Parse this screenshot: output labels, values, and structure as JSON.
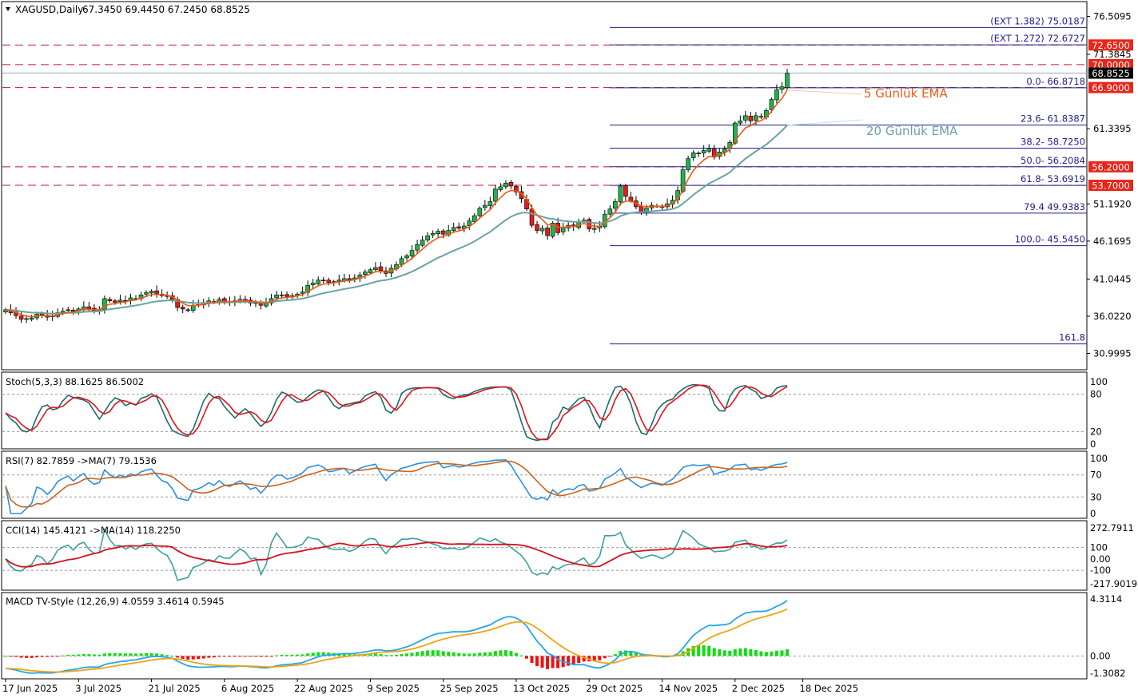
{
  "header": {
    "title": "XAGUSD,Daily",
    "ohlc": "67.3450 69.4450 67.2450 68.8525"
  },
  "colors": {
    "up_candle": "#22b24c",
    "down_candle": "#e21b1b",
    "ema5": "#f05a14",
    "ema20": "#6aa3a3",
    "level_line": "#1f1f8c",
    "resistance_dash": "#c8102e",
    "price_label_bg": "#e8261a",
    "stoch_main": "#1d6b6b",
    "stoch_signal": "#e0141c",
    "rsi_main": "#2b8fe0",
    "rsi_ma": "#c8641e",
    "cci_main": "#3aa0a0",
    "cci_ma": "#d4101e",
    "macd_line": "#22a8e6",
    "macd_signal": "#f5a211",
    "hist_pos": "#11dd11",
    "hist_neg": "#ee1111"
  },
  "chart_data": [
    {
      "type": "candlestick",
      "symbol": "XAGUSD",
      "timeframe": "Daily",
      "ylim": [
        28.9,
        78.4
      ],
      "y_ticks": [
        "76.5095",
        "71.3845",
        "61.3395",
        "51.1920",
        "46.1695",
        "41.0445",
        "36.0220",
        "30.9995"
      ],
      "x_ticks": [
        "17 Jun 2025",
        "3 Jul 2025",
        "21 Jul 2025",
        "6 Aug 2025",
        "22 Aug 2025",
        "9 Sep 2025",
        "25 Sep 2025",
        "13 Oct 2025",
        "29 Oct 2025",
        "14 Nov 2025",
        "2 Dec 2025",
        "18 Dec 2025"
      ],
      "closes": [
        36.9,
        36.5,
        36.1,
        35.6,
        35.7,
        35.8,
        36.3,
        36.2,
        35.9,
        36.1,
        36.5,
        36.7,
        36.9,
        36.7,
        37.0,
        37.3,
        37.0,
        36.8,
        36.9,
        38.4,
        38.1,
        37.9,
        38.2,
        38.1,
        38.5,
        38.4,
        38.9,
        39.2,
        39.4,
        39.1,
        38.8,
        38.7,
        38.3,
        37.2,
        37.0,
        36.8,
        37.5,
        37.6,
        37.8,
        38.1,
        37.9,
        38.3,
        38.0,
        37.9,
        38.1,
        38.3,
        38.1,
        37.8,
        37.9,
        37.5,
        37.8,
        38.4,
        38.9,
        38.9,
        38.7,
        38.8,
        39.0,
        39.3,
        40.2,
        40.5,
        40.9,
        40.8,
        40.6,
        40.7,
        40.9,
        41.1,
        40.9,
        41.2,
        41.6,
        42.0,
        42.3,
        42.6,
        42.2,
        41.8,
        42.5,
        43.0,
        43.8,
        44.2,
        44.9,
        45.7,
        46.3,
        46.9,
        47.2,
        47.5,
        47.1,
        47.6,
        48.0,
        47.9,
        48.2,
        48.9,
        49.6,
        50.6,
        51.0,
        51.5,
        53.2,
        53.5,
        54.0,
        53.6,
        52.8,
        51.9,
        50.5,
        48.3,
        47.6,
        47.9,
        46.9,
        48.6,
        47.3,
        48.0,
        48.3,
        48.1,
        48.8,
        49.0,
        47.8,
        47.9,
        48.2,
        49.8,
        50.5,
        51.5,
        53.6,
        52.2,
        51.6,
        50.8,
        50.1,
        50.6,
        51.0,
        50.9,
        50.7,
        51.2,
        51.7,
        53.0,
        55.8,
        57.3,
        58.1,
        58.0,
        58.4,
        58.6,
        57.5,
        58.2,
        58.6,
        59.5,
        62.1,
        62.4,
        63.1,
        62.4,
        63.1,
        62.9,
        63.8,
        65.3,
        66.6,
        67.0,
        68.85
      ],
      "series": [
        {
          "name": "5 Günlük EMA"
        },
        {
          "name": "20 Günlük EMA"
        }
      ],
      "fib_levels": [
        {
          "label": "(EXT 1.382)  75.0187",
          "value": 75.0187
        },
        {
          "label": "(EXT 1.272)  72.6727",
          "value": 72.6727
        },
        {
          "label": "0.0- 66.8718",
          "value": 66.8718
        },
        {
          "label": "23.6- 61.8387",
          "value": 61.8387
        },
        {
          "label": "38.2- 58.7250",
          "value": 58.725
        },
        {
          "label": "50.0- 56.2084",
          "value": 56.2084
        },
        {
          "label": "61.8- 53.6919",
          "value": 53.6919
        },
        {
          "label": "79.4 49.9383",
          "value": 49.9383
        },
        {
          "label": "100.0- 45.5450",
          "value": 45.545
        },
        {
          "label": "161.8",
          "value": 32.28
        }
      ],
      "resistance_levels": [
        {
          "label": "72.6500",
          "value": 72.65
        },
        {
          "label": "70.0000",
          "value": 70.0
        },
        {
          "label": "66.9000",
          "value": 66.9
        },
        {
          "label": "56.2000",
          "value": 56.2
        },
        {
          "label": "53.7000",
          "value": 53.7
        }
      ],
      "current_price_label": "68.8525"
    },
    {
      "type": "line",
      "title": "Stoch(5,3,3) 88.1625 86.5002",
      "ylim": [
        0,
        100
      ],
      "y_ticks": [
        "100",
        "80",
        "20",
        "0"
      ],
      "levels": [
        80,
        20
      ]
    },
    {
      "type": "line",
      "title": "RSI(7) 82.7859  ->MA(7) 79.1536",
      "ylim": [
        0,
        100
      ],
      "y_ticks": [
        "100",
        "70",
        "30",
        "0"
      ],
      "levels": [
        70,
        30
      ]
    },
    {
      "type": "line",
      "title": "CCI(14) 145.4121  ->MA(14) 118.2250",
      "ylim": [
        -217.9019,
        272.7911
      ],
      "y_ticks": [
        "272.7911",
        "100",
        "0.00",
        "-100",
        "-217.9019"
      ],
      "levels": [
        100,
        -100
      ]
    },
    {
      "type": "bar",
      "title": "MACD TV-Style (12,26,9) 4.0559 3.4614 0.5945",
      "ylim": [
        -1.3082,
        4.3114
      ],
      "y_ticks": [
        "4.3114",
        "0.00",
        "-1.3082"
      ]
    }
  ]
}
